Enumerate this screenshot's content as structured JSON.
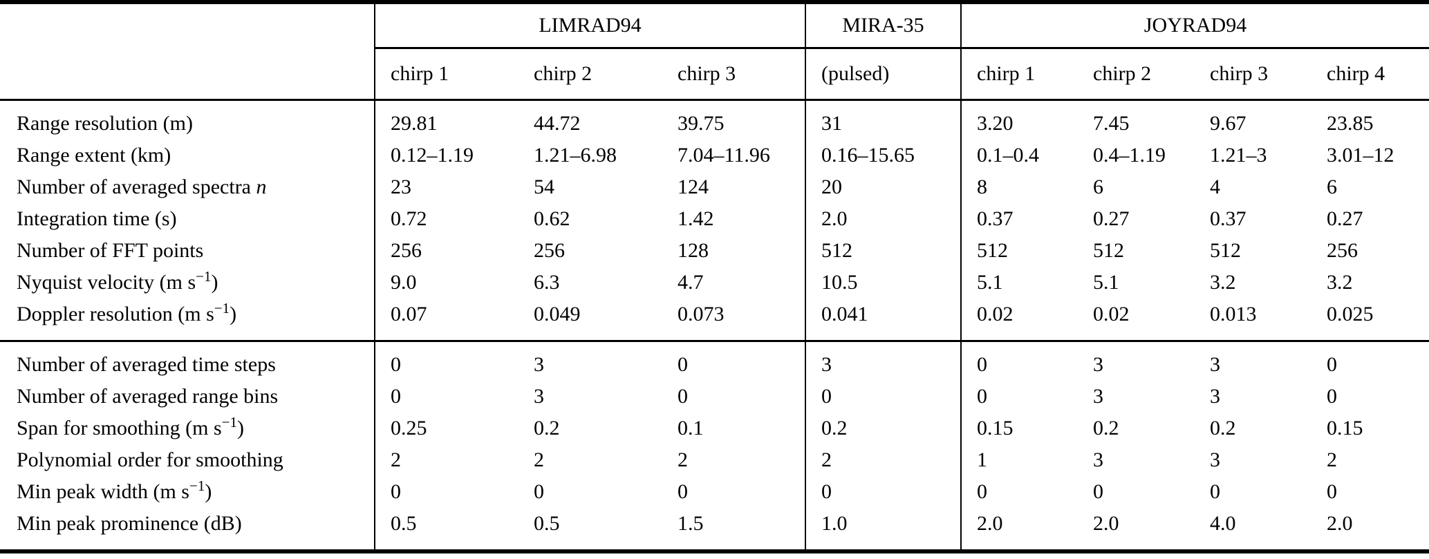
{
  "table": {
    "corner": "",
    "groups": [
      {
        "label": "LIMRAD94",
        "cols": [
          "chirp 1",
          "chirp 2",
          "chirp 3"
        ]
      },
      {
        "label": "MIRA-35",
        "cols": [
          "(pulsed)"
        ]
      },
      {
        "label": "JOYRAD94",
        "cols": [
          "chirp 1",
          "chirp 2",
          "chirp 3",
          "chirp 4"
        ]
      }
    ],
    "sections": [
      {
        "rows": [
          {
            "label_parts": [
              {
                "t": "Range resolution (m)"
              }
            ],
            "values": [
              "29.81",
              "44.72",
              "39.75",
              "31",
              "3.20",
              "7.45",
              "9.67",
              "23.85"
            ]
          },
          {
            "label_parts": [
              {
                "t": "Range extent (km)"
              }
            ],
            "values": [
              "0.12–1.19",
              "1.21–6.98",
              "7.04–11.96",
              "0.16–15.65",
              "0.1–0.4",
              "0.4–1.19",
              "1.21–3",
              "3.01–12"
            ]
          },
          {
            "label_parts": [
              {
                "t": "Number of averaged spectra "
              },
              {
                "t": "n",
                "style": "italic"
              }
            ],
            "values": [
              "23",
              "54",
              "124",
              "20",
              "8",
              "6",
              "4",
              "6"
            ]
          },
          {
            "label_parts": [
              {
                "t": "Integration time (s)"
              }
            ],
            "values": [
              "0.72",
              "0.62",
              "1.42",
              "2.0",
              "0.37",
              "0.27",
              "0.37",
              "0.27"
            ]
          },
          {
            "label_parts": [
              {
                "t": "Number of FFT points"
              }
            ],
            "values": [
              "256",
              "256",
              "128",
              "512",
              "512",
              "512",
              "512",
              "256"
            ]
          },
          {
            "label_parts": [
              {
                "t": "Nyquist velocity (m s"
              },
              {
                "t": "−1",
                "style": "sup"
              },
              {
                "t": ")"
              }
            ],
            "values": [
              "9.0",
              "6.3",
              "4.7",
              "10.5",
              "5.1",
              "5.1",
              "3.2",
              "3.2"
            ]
          },
          {
            "label_parts": [
              {
                "t": "Doppler resolution (m s"
              },
              {
                "t": "−1",
                "style": "sup"
              },
              {
                "t": ")"
              }
            ],
            "values": [
              "0.07",
              "0.049",
              "0.073",
              "0.041",
              "0.02",
              "0.02",
              "0.013",
              "0.025"
            ]
          }
        ]
      },
      {
        "rows": [
          {
            "label_parts": [
              {
                "t": "Number of averaged time steps"
              }
            ],
            "values": [
              "0",
              "3",
              "0",
              "3",
              "0",
              "3",
              "3",
              "0"
            ]
          },
          {
            "label_parts": [
              {
                "t": "Number of averaged range bins"
              }
            ],
            "values": [
              "0",
              "3",
              "0",
              "0",
              "0",
              "3",
              "3",
              "0"
            ]
          },
          {
            "label_parts": [
              {
                "t": "Span for smoothing (m s"
              },
              {
                "t": "−1",
                "style": "sup"
              },
              {
                "t": ")"
              }
            ],
            "values": [
              "0.25",
              "0.2",
              "0.1",
              "0.2",
              "0.15",
              "0.2",
              "0.2",
              "0.15"
            ]
          },
          {
            "label_parts": [
              {
                "t": "Polynomial order for smoothing"
              }
            ],
            "values": [
              "2",
              "2",
              "2",
              "2",
              "1",
              "3",
              "3",
              "2"
            ]
          },
          {
            "label_parts": [
              {
                "t": "Min peak width (m s"
              },
              {
                "t": "−1",
                "style": "sup"
              },
              {
                "t": ")"
              }
            ],
            "values": [
              "0",
              "0",
              "0",
              "0",
              "0",
              "0",
              "0",
              "0"
            ]
          },
          {
            "label_parts": [
              {
                "t": "Min peak prominence (dB)"
              }
            ],
            "values": [
              "0.5",
              "0.5",
              "1.5",
              "1.0",
              "2.0",
              "2.0",
              "4.0",
              "2.0"
            ]
          }
        ]
      }
    ]
  },
  "colors": {
    "text": "#000000",
    "background": "#ffffff",
    "rule": "#000000"
  }
}
